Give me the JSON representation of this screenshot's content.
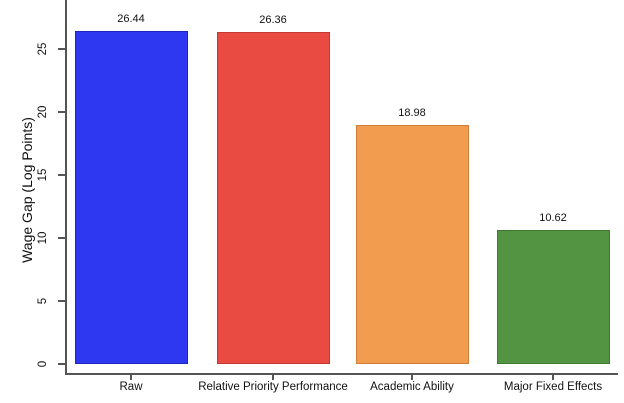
{
  "chart_data": {
    "type": "bar",
    "title": "",
    "xlabel": "",
    "ylabel": "Wage Gap (Log Points)",
    "categories": [
      "Raw",
      "Relative Priority Performance",
      "Academic Ability",
      "Major Fixed Effects"
    ],
    "values": [
      26.44,
      26.36,
      18.98,
      10.62
    ],
    "value_labels": [
      "26.44",
      "26.36",
      "18.98",
      "10.62"
    ],
    "bar_colors": [
      "#2D38F0",
      "#E94B42",
      "#F19C4E",
      "#529442"
    ],
    "bar_border_colors": [
      "#1F25C0",
      "#C13931",
      "#CF7E3A",
      "#3E7A30"
    ],
    "yticks": [
      0,
      5,
      10,
      15,
      20,
      25
    ],
    "ylim": [
      0,
      28.9
    ],
    "grid": false,
    "legend": null,
    "axis_color": "#555555",
    "text_color": "#111111",
    "background_color": "#ffffff"
  }
}
